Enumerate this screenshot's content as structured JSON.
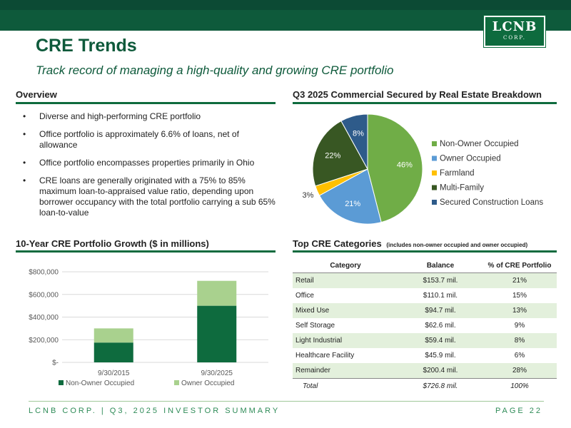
{
  "brand": {
    "logo_text": "LCNB",
    "logo_sub": "CORP.",
    "colors": {
      "dark_green": "#0e5a3b",
      "green": "#0e6b3e",
      "light_green": "#a9d18e",
      "gold": "#ffc000",
      "olive": "#385723",
      "blue": "#2e5b8a",
      "mid_green": "#70ad47",
      "sky": "#5b9bd5"
    }
  },
  "header": {
    "title": "CRE Trends",
    "subtitle": "Track record of managing a high-quality and growing CRE portfolio"
  },
  "overview": {
    "heading": "Overview",
    "bullets": [
      "Diverse and high-performing CRE portfolio",
      "Office portfolio is approximately 6.6% of loans, net of allowance",
      "Office portfolio encompasses properties primarily in Ohio",
      "CRE loans are generally originated with a 75% to 85% maximum loan-to-appraised value ratio, depending upon borrower occupancy with the total portfolio carrying a sub 65% loan-to-value"
    ]
  },
  "pie_section": {
    "heading": "Q3 2025 Commercial Secured by Real Estate Breakdown"
  },
  "bar_section": {
    "heading": "10-Year CRE Portfolio Growth ($ in millions)"
  },
  "table_section": {
    "heading": "Top CRE Categories",
    "heading_note": "(includes non-owner occupied and owner occupied)",
    "columns": [
      "Category",
      "Balance",
      "% of CRE Portfolio"
    ],
    "rows": [
      [
        "Retail",
        "$153.7 mil.",
        "21%"
      ],
      [
        "Office",
        "$110.1 mil.",
        "15%"
      ],
      [
        "Mixed Use",
        "$94.7 mil.",
        "13%"
      ],
      [
        "Self Storage",
        "$62.6 mil.",
        "9%"
      ],
      [
        "Light Industrial",
        "$59.4 mil.",
        "8%"
      ],
      [
        "Healthcare Facility",
        "$45.9 mil.",
        "6%"
      ],
      [
        "Remainder",
        "$200.4 mil.",
        "28%"
      ]
    ],
    "total": [
      "Total",
      "$726.8 mil.",
      "100%"
    ]
  },
  "footer": {
    "left": "LCNB CORP. | Q3, 2025 INVESTOR SUMMARY",
    "right": "PAGE 22"
  },
  "chart_data": [
    {
      "type": "pie",
      "title": "Q3 2025 Commercial Secured by Real Estate Breakdown",
      "legend_position": "right",
      "slices": [
        {
          "name": "Non-Owner Occupied",
          "value": 46,
          "label": "46%",
          "color": "#70ad47"
        },
        {
          "name": "Owner Occupied",
          "value": 21,
          "label": "21%",
          "color": "#5b9bd5"
        },
        {
          "name": "Farmland",
          "value": 3,
          "label": "3%",
          "color": "#ffc000"
        },
        {
          "name": "Multi-Family",
          "value": 22,
          "label": "22%",
          "color": "#385723"
        },
        {
          "name": "Secured Construction Loans",
          "value": 8,
          "label": "8%",
          "color": "#2e5b8a"
        }
      ]
    },
    {
      "type": "bar",
      "stacked": true,
      "title": "10-Year CRE Portfolio Growth ($ in millions)",
      "categories": [
        "9/30/2015",
        "9/30/2025"
      ],
      "series": [
        {
          "name": "Non-Owner Occupied",
          "values": [
            175000,
            500000
          ],
          "color": "#0e6b3e"
        },
        {
          "name": "Owner Occupied",
          "values": [
            125000,
            220000
          ],
          "color": "#a9d18e"
        }
      ],
      "ylim": [
        0,
        800000
      ],
      "yticks": [
        0,
        200000,
        400000,
        600000,
        800000
      ],
      "ytick_labels": [
        "$-",
        "$200,000",
        "$400,000",
        "$600,000",
        "$800,000"
      ],
      "legend_position": "bottom"
    }
  ]
}
